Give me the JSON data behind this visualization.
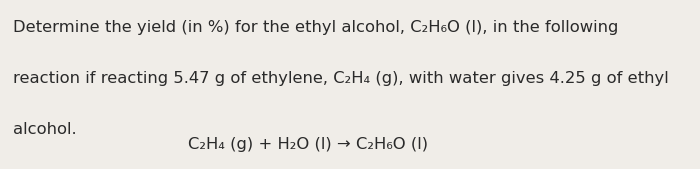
{
  "background_color": "#f0ede8",
  "line1": "Determine the yield (in %) for the ethyl alcohol, C₂H₆O (l), in the following",
  "line2": "reaction if reacting 5.47 g of ethylene, C₂H₄ (g), with water gives 4.25 g of ethyl",
  "line3": "alcohol.",
  "equation": "C₂H₄ (g) + H₂O (l) → C₂H₆O (l)",
  "text_color": "#2a2a2a",
  "font_size_body": 11.8,
  "font_size_eq": 11.8,
  "fontweight": "normal"
}
